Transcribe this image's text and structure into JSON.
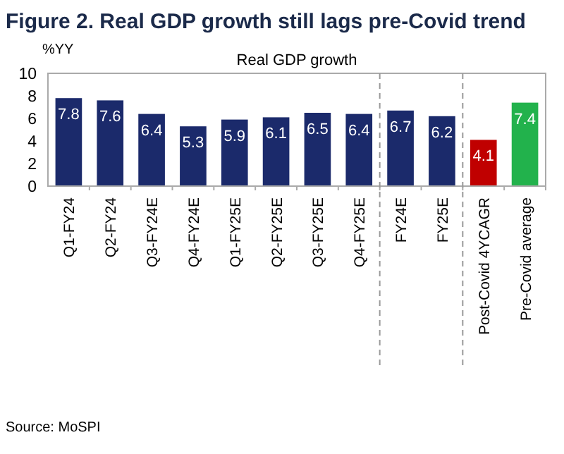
{
  "chart_data": {
    "type": "bar",
    "title": "Figure 2. Real GDP growth still lags pre-Covid trend",
    "subtitle": "Real GDP growth",
    "ylabel": "%YY",
    "categories": [
      "Q1-FY24",
      "Q2-FY24",
      "Q3-FY24E",
      "Q4-FY24E",
      "Q1-FY25E",
      "Q2-FY25E",
      "Q3-FY25E",
      "Q4-FY25E",
      "FY24E",
      "FY25E",
      "Post-Covid 4YCAGR",
      "Pre-Covid average"
    ],
    "values": [
      7.8,
      7.6,
      6.4,
      5.3,
      5.9,
      6.1,
      6.5,
      6.4,
      6.7,
      6.2,
      4.1,
      7.4
    ],
    "colors": [
      "#1b2a6b",
      "#1b2a6b",
      "#1b2a6b",
      "#1b2a6b",
      "#1b2a6b",
      "#1b2a6b",
      "#1b2a6b",
      "#1b2a6b",
      "#1b2a6b",
      "#1b2a6b",
      "#c00000",
      "#22b24c"
    ],
    "data_labels": true,
    "ylim": [
      0,
      10
    ],
    "yticks": [
      0,
      2,
      4,
      6,
      8,
      10
    ],
    "grid": false,
    "annotations": [
      "Source: MoSPI"
    ]
  }
}
